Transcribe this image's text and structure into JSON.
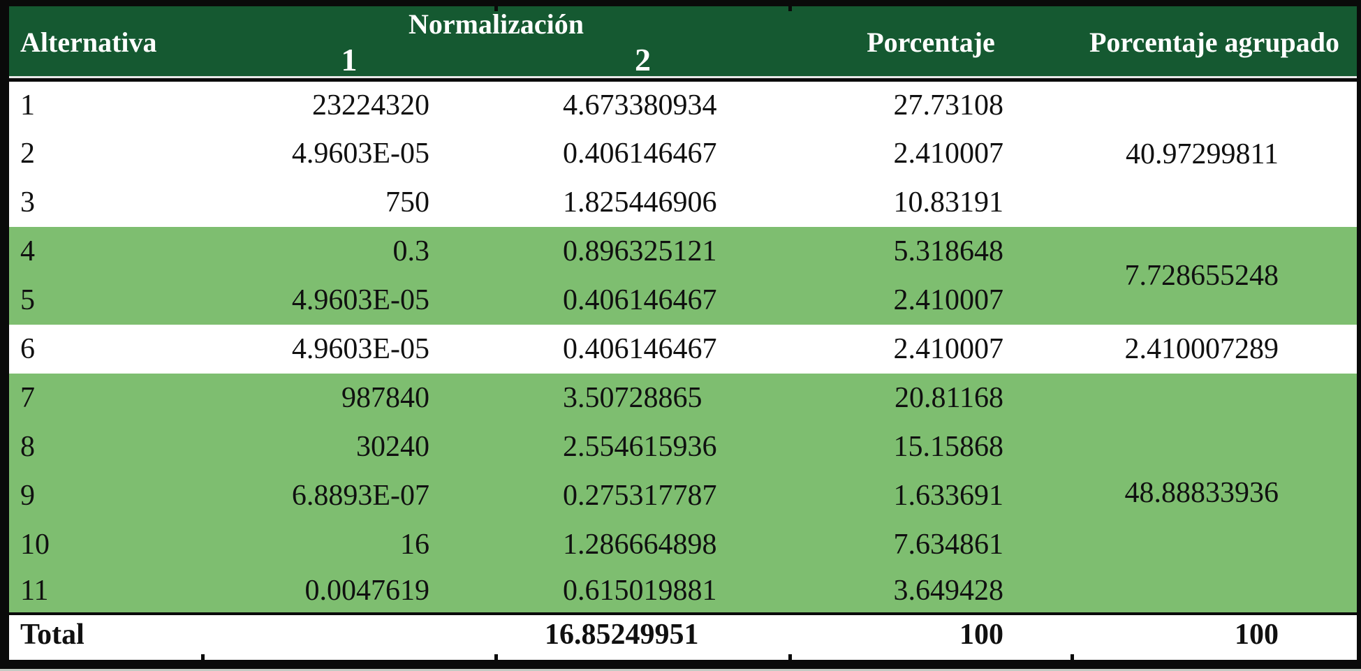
{
  "table": {
    "headers": {
      "alternativa": "Alternativa",
      "normalizacion": "Normalización",
      "norm1": "1",
      "norm2": "2",
      "porcentaje": "Porcentaje",
      "porcentaje_agrupado": "Porcentaje agrupado"
    },
    "rows": [
      {
        "alternativa": "1",
        "norm1": "23224320",
        "norm2": "4.673380934",
        "porcentaje": "27.73108"
      },
      {
        "alternativa": "2",
        "norm1": "4.9603E-05",
        "norm2": "0.406146467",
        "porcentaje": "2.410007"
      },
      {
        "alternativa": "3",
        "norm1": "750",
        "norm2": "1.825446906",
        "porcentaje": "10.83191"
      },
      {
        "alternativa": "4",
        "norm1": "0.3",
        "norm2": "0.896325121",
        "porcentaje": "5.318648"
      },
      {
        "alternativa": "5",
        "norm1": "4.9603E-05",
        "norm2": "0.406146467",
        "porcentaje": "2.410007"
      },
      {
        "alternativa": "6",
        "norm1": "4.9603E-05",
        "norm2": "0.406146467",
        "porcentaje": "2.410007"
      },
      {
        "alternativa": "7",
        "norm1": "987840",
        "norm2": "3.50728865",
        "porcentaje": "20.81168"
      },
      {
        "alternativa": "8",
        "norm1": "30240",
        "norm2": "2.554615936",
        "porcentaje": "15.15868"
      },
      {
        "alternativa": "9",
        "norm1": "6.8893E-07",
        "norm2": "0.275317787",
        "porcentaje": "1.633691"
      },
      {
        "alternativa": "10",
        "norm1": "16",
        "norm2": "1.286664898",
        "porcentaje": "7.634861"
      },
      {
        "alternativa": "11",
        "norm1": "0.0047619",
        "norm2": "0.615019881",
        "porcentaje": "3.649428"
      }
    ],
    "groups": [
      {
        "rows_spanned": "1-3",
        "value": "40.97299811",
        "highlighted": false
      },
      {
        "rows_spanned": "4-5",
        "value": "7.728655248",
        "highlighted": true
      },
      {
        "rows_spanned": "6",
        "value": "2.410007289",
        "highlighted": false
      },
      {
        "rows_spanned": "7-11",
        "value": "48.88833936",
        "highlighted": true
      }
    ],
    "total": {
      "label": "Total",
      "norm2": "16.85249951",
      "porcentaje": "100",
      "porcentaje_agrupado": "100"
    }
  },
  "colors": {
    "header_green": "#155931",
    "row_highlight_green": "#7ebe70",
    "border_black": "#0a0a0a",
    "header_divider_light": "#e8e8e8"
  }
}
